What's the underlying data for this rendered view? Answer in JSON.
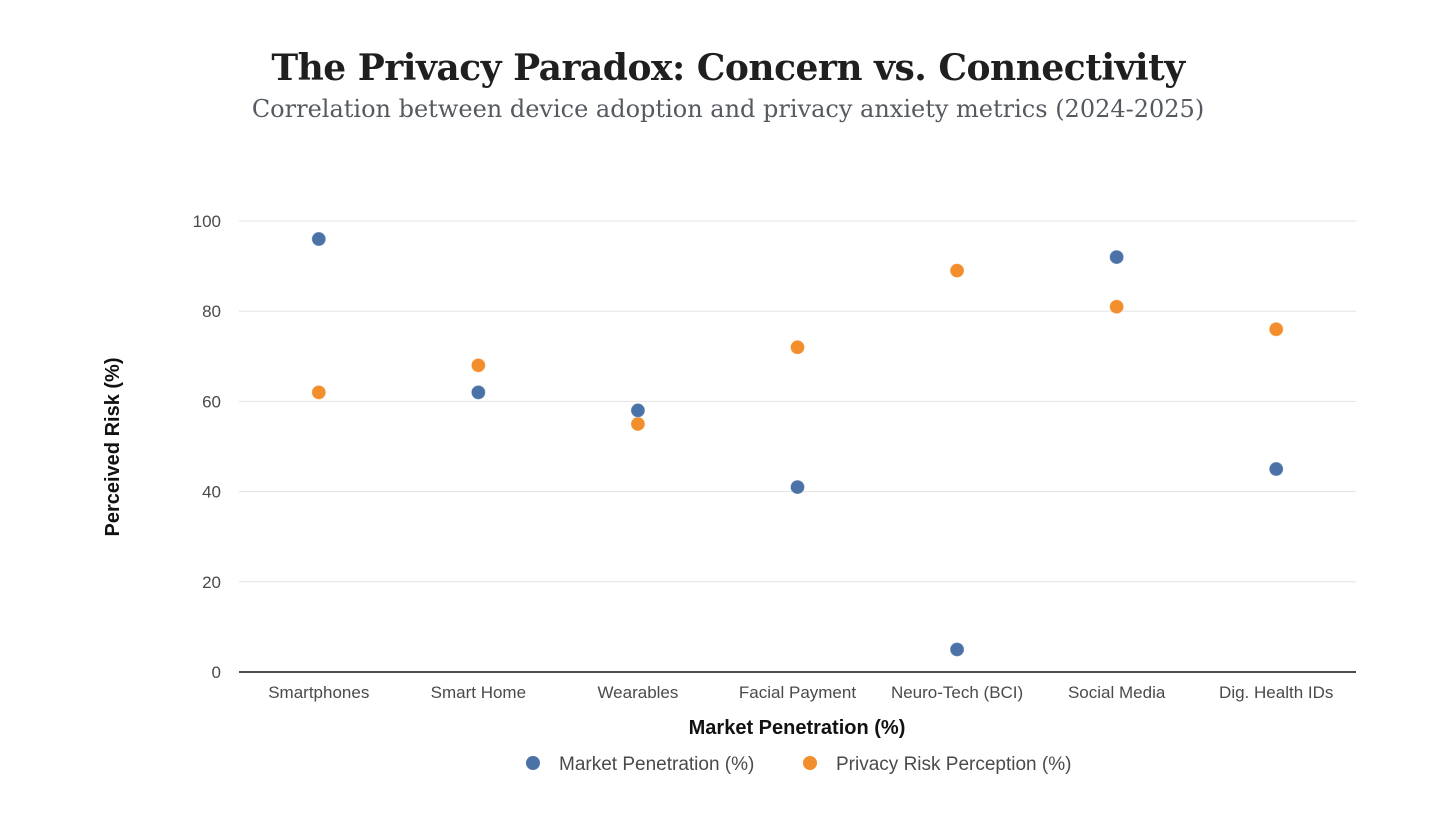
{
  "chart_data": {
    "type": "scatter",
    "title": "The Privacy Paradox: Concern vs. Connectivity",
    "subtitle": "Correlation between device adoption and privacy anxiety metrics (2024-2025)",
    "xlabel": "Market Penetration (%)",
    "ylabel": "Perceived Risk (%)",
    "categories": [
      "Smartphones",
      "Smart Home",
      "Wearables",
      "Facial Payment",
      "Neuro-Tech (BCI)",
      "Social Media",
      "Dig. Health IDs"
    ],
    "ylim": [
      0,
      100
    ],
    "yticks": [
      0,
      20,
      40,
      60,
      80,
      100
    ],
    "grid": true,
    "legend_position": "bottom",
    "series": [
      {
        "name": "Market Penetration (%)",
        "color": "#4a72a6",
        "values": [
          96,
          62,
          58,
          41,
          5,
          92,
          45
        ]
      },
      {
        "name": "Privacy Risk Perception (%)",
        "color": "#f28e2b",
        "values": [
          62,
          68,
          55,
          72,
          89,
          81,
          76
        ]
      }
    ]
  }
}
